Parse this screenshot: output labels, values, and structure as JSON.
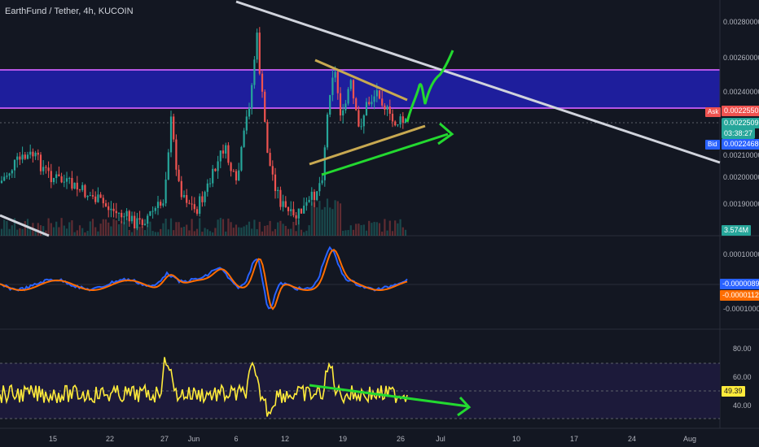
{
  "symbol": {
    "title": "EarthFund / Tether, 4h, KUCOIN"
  },
  "price_axis": {
    "labels": [
      "0.00280000",
      "0.00260000",
      "0.00240000",
      "0.00210000",
      "0.00200000",
      "0.00190000"
    ],
    "ask_label": "Ask",
    "ask_price": "0.00225505",
    "last_price": "0.00225096",
    "countdown": "03:38:27",
    "bid_label": "Bid",
    "bid_price": "0.00224680",
    "volume": "3.574M"
  },
  "macd_axis": {
    "labels": [
      "0.00010000",
      "-0.00010000"
    ],
    "macd_value": "-0.00000890",
    "signal_value": "-0.00001123"
  },
  "rsi_axis": {
    "labels": [
      "80.00",
      "60.00",
      "40.00"
    ],
    "rsi_value": "49.39"
  },
  "time_axis": {
    "labels": [
      "15",
      "22",
      "27",
      "Jun",
      "6",
      "12",
      "19",
      "26",
      "Jul",
      "10",
      "17",
      "24",
      "Aug"
    ]
  },
  "colors": {
    "background": "#131722",
    "up": "#26a69a",
    "down": "#ef5350",
    "resistance_zone": "#1e1e9c",
    "zone_border": "#b455e6",
    "macd": "#2962ff",
    "signal": "#ff6d00",
    "rsi": "#ffeb3b",
    "annotation_green": "#23d930",
    "trendline_gold": "#c8a951",
    "trendline_white": "#d0d3dc"
  }
}
